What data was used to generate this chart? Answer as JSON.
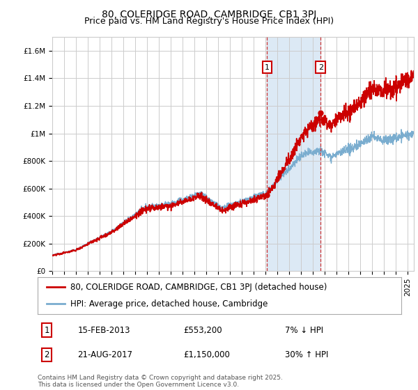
{
  "title": "80, COLERIDGE ROAD, CAMBRIDGE, CB1 3PJ",
  "subtitle": "Price paid vs. HM Land Registry's House Price Index (HPI)",
  "ylim": [
    0,
    1700000
  ],
  "yticks": [
    0,
    200000,
    400000,
    600000,
    800000,
    1000000,
    1200000,
    1400000,
    1600000
  ],
  "ytick_labels": [
    "£0",
    "£200K",
    "£400K",
    "£600K",
    "£800K",
    "£1M",
    "£1.2M",
    "£1.4M",
    "£1.6M"
  ],
  "xlim_start": 1995.0,
  "xlim_end": 2025.5,
  "line1_color": "#cc0000",
  "line2_color": "#7aadcf",
  "line1_label": "80, COLERIDGE ROAD, CAMBRIDGE, CB1 3PJ (detached house)",
  "line2_label": "HPI: Average price, detached house, Cambridge",
  "marker1_date": 2013.12,
  "marker1_price": 553200,
  "marker1_label": "1",
  "marker2_date": 2017.64,
  "marker2_price": 1150000,
  "marker2_label": "2",
  "marker1_hpi_pct": "7% ↓ HPI",
  "marker2_hpi_pct": "30% ↑ HPI",
  "marker1_date_str": "15-FEB-2013",
  "marker1_price_str": "£553,200",
  "marker2_date_str": "21-AUG-2017",
  "marker2_price_str": "£1,150,000",
  "shade_color": "#dce9f5",
  "grid_color": "#cccccc",
  "background_color": "#ffffff",
  "footnote": "Contains HM Land Registry data © Crown copyright and database right 2025.\nThis data is licensed under the Open Government Licence v3.0.",
  "title_fontsize": 10,
  "subtitle_fontsize": 9,
  "tick_fontsize": 7.5,
  "legend_fontsize": 8.5,
  "annotation_fontsize": 8.5
}
